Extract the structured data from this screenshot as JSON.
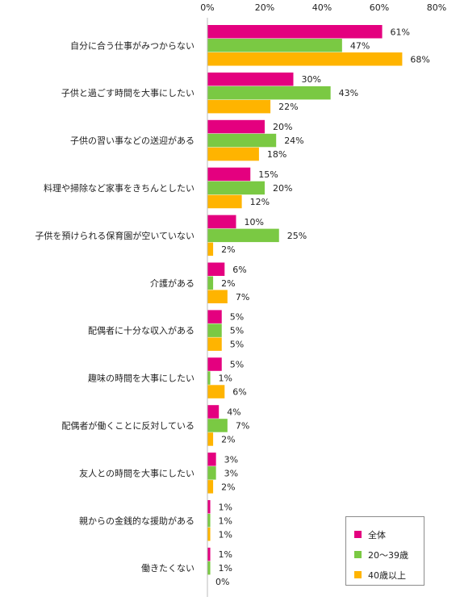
{
  "chart_data": {
    "type": "bar",
    "orientation": "horizontal",
    "categories": [
      "自分に合う仕事がみつからない",
      "子供と過ごす時間を大事にしたい",
      "子供の習い事などの送迎がある",
      "料理や掃除など家事をきちんとしたい",
      "子供を預けられる保育園が空いていない",
      "介護がある",
      "配偶者に十分な収入がある",
      "趣味の時間を大事にしたい",
      "配偶者が働くことに反対している",
      "友人との時間を大事にしたい",
      "親からの金銭的な援助がある",
      "働きたくない"
    ],
    "series": [
      {
        "name": "全体",
        "color": "#e4007f",
        "values": [
          61,
          30,
          20,
          15,
          10,
          6,
          5,
          5,
          4,
          3,
          1,
          1
        ]
      },
      {
        "name": "20～39歳",
        "color": "#7ac943",
        "values": [
          47,
          43,
          24,
          20,
          25,
          2,
          5,
          1,
          7,
          3,
          1,
          1
        ]
      },
      {
        "name": "40歳以上",
        "color": "#ffb400",
        "values": [
          68,
          22,
          18,
          12,
          2,
          7,
          5,
          6,
          2,
          2,
          1,
          0
        ]
      }
    ],
    "xticks": [
      "0%",
      "20%",
      "40%",
      "60%",
      "80%"
    ],
    "xlim": [
      0,
      80
    ],
    "value_suffix": "%",
    "legend_position": "bottom-right",
    "grid": false
  }
}
